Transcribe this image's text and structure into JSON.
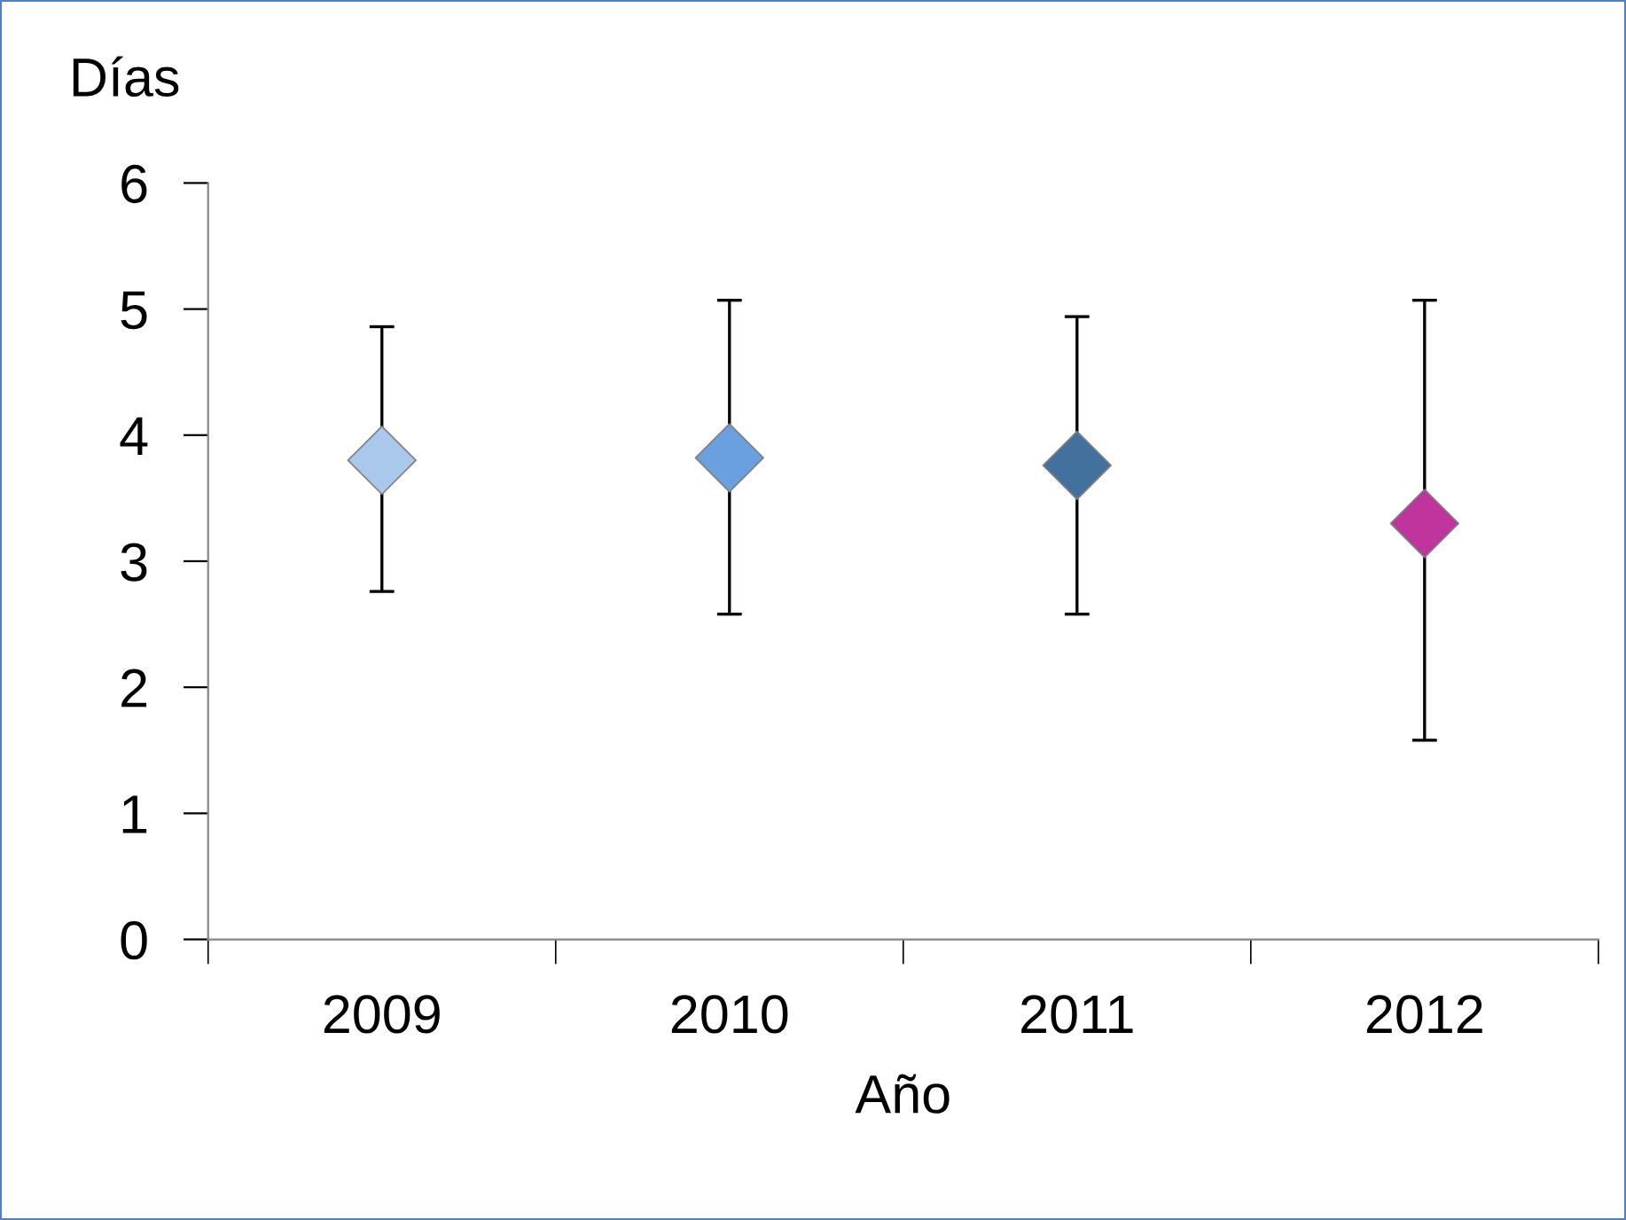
{
  "chart_data": {
    "type": "scatter",
    "ylabel": "Días",
    "xlabel": "Año",
    "categories": [
      "2009",
      "2010",
      "2011",
      "2012"
    ],
    "values": [
      3.8,
      3.82,
      3.76,
      3.3
    ],
    "errors": [
      [
        2.76,
        4.86
      ],
      [
        2.58,
        5.07
      ],
      [
        2.58,
        4.94
      ],
      [
        1.58,
        5.07
      ]
    ],
    "colors": [
      "#a9c8ec",
      "#6a9fe0",
      "#41719c",
      "#c0349e"
    ],
    "marker": "diamond",
    "ylim": [
      0,
      6
    ],
    "yticks": [
      0,
      1,
      2,
      3,
      4,
      5,
      6
    ],
    "grid": false,
    "legend": false
  }
}
